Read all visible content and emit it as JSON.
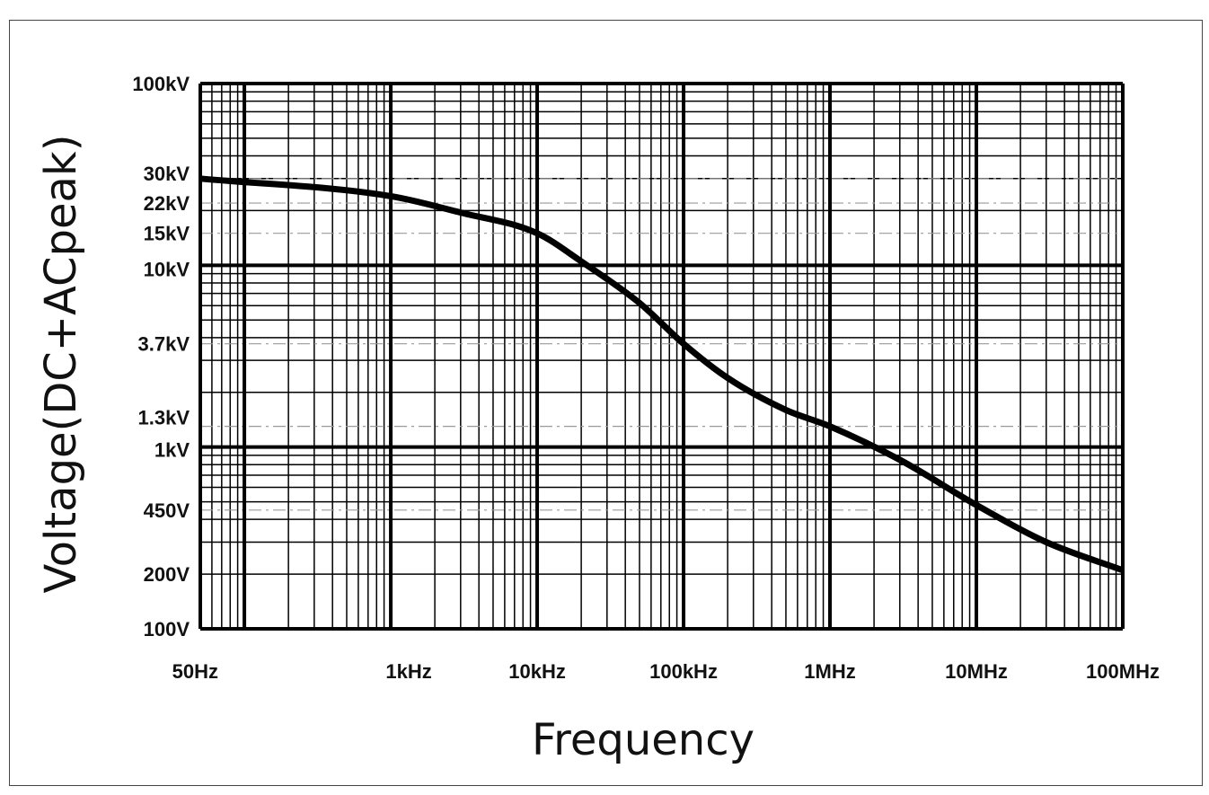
{
  "chart_data": {
    "type": "line",
    "title": "",
    "xlabel": "Frequency",
    "ylabel": "Voltage(DC+ACpeak)",
    "x_scale": "log",
    "y_scale": "log",
    "xlim": [
      50,
      100000000
    ],
    "ylim": [
      100,
      100000
    ],
    "grid": true,
    "x_ticks": [
      {
        "value": 50,
        "label": "50Hz"
      },
      {
        "value": 1000,
        "label": "1kHz"
      },
      {
        "value": 10000,
        "label": "10kHz"
      },
      {
        "value": 100000,
        "label": "100kHz"
      },
      {
        "value": 1000000,
        "label": "1MHz"
      },
      {
        "value": 10000000,
        "label": "10MHz"
      },
      {
        "value": 100000000,
        "label": "100MHz"
      }
    ],
    "y_ticks": [
      {
        "value": 100,
        "label": "100V"
      },
      {
        "value": 200,
        "label": "200V"
      },
      {
        "value": 450,
        "label": "450V"
      },
      {
        "value": 1000,
        "label": "1kV"
      },
      {
        "value": 1300,
        "label": "1.3kV"
      },
      {
        "value": 3700,
        "label": "3.7kV"
      },
      {
        "value": 10000,
        "label": "10kV"
      },
      {
        "value": 15000,
        "label": "15kV"
      },
      {
        "value": 22000,
        "label": "22kV"
      },
      {
        "value": 30000,
        "label": "30kV"
      },
      {
        "value": 100000,
        "label": "100kV"
      }
    ],
    "reference_levels": [
      30000,
      22000,
      15000,
      3700,
      1300,
      450
    ],
    "series": [
      {
        "color": "#000000",
        "x": [
          50,
          1000,
          3000,
          10000,
          20000,
          50000,
          100000,
          200000,
          500000,
          1000000,
          3000000,
          10000000,
          30000000,
          100000000
        ],
        "y": [
          30000,
          24000,
          19500,
          15000,
          10500,
          6200,
          3700,
          2400,
          1600,
          1300,
          850,
          480,
          300,
          210
        ]
      }
    ]
  }
}
